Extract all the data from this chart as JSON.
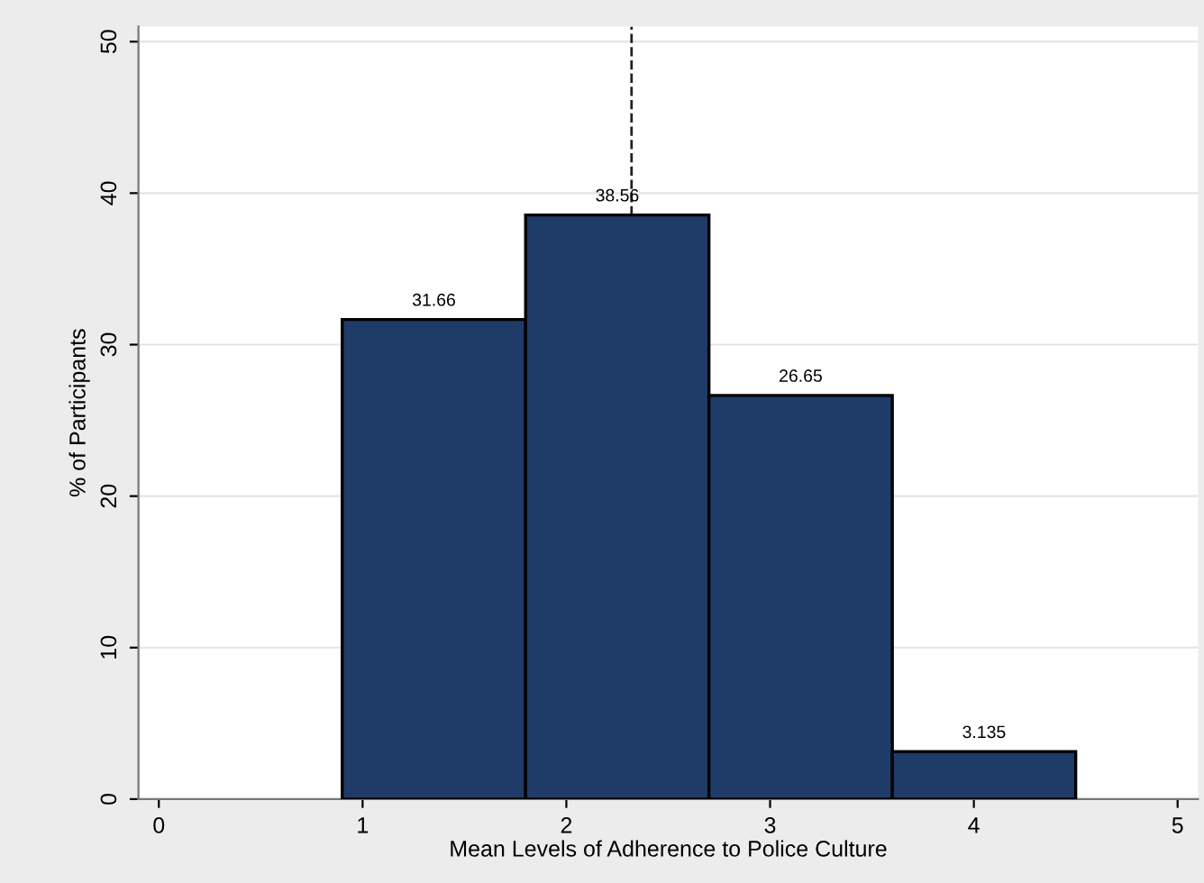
{
  "chart_data": {
    "type": "histogram",
    "xlabel": "Mean Levels of Adherence to Police Culture",
    "ylabel": "% of Participants",
    "bins": [
      0.9,
      1.8,
      2.7,
      3.6,
      4.5
    ],
    "values": [
      31.66,
      38.56,
      26.65,
      3.135
    ],
    "value_labels": [
      "31.66",
      "38.56",
      "26.65",
      "3.135"
    ],
    "color": "#1f3b68",
    "xlim": [
      -0.1,
      5.1
    ],
    "xticks": [
      0,
      1,
      2,
      3,
      4,
      5
    ],
    "ylim": [
      0,
      51
    ],
    "yticks": [
      0,
      10,
      20,
      30,
      40,
      50
    ],
    "grid": "y",
    "ref_lines": [
      {
        "axis": "x",
        "value": 2.32,
        "color": "#222222",
        "line_style": "dashed"
      }
    ]
  }
}
